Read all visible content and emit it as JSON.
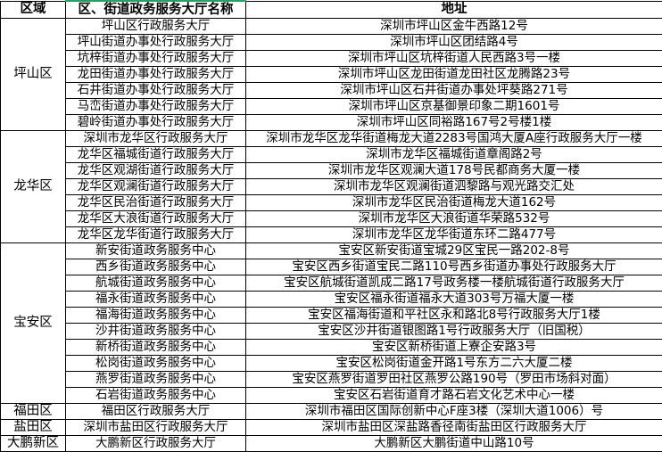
{
  "headers": {
    "region": "区域",
    "name": "区、街道政务服务大厅名称",
    "address": "地址"
  },
  "groups": [
    {
      "region": "坪山区",
      "rows": [
        [
          "坪山区行政服务大厅",
          "深圳市坪山区金牛西路12号"
        ],
        [
          "坪山街道办事处行政服务大厅",
          "深圳市坪山区团结路4号"
        ],
        [
          "坑梓街道办事处行政服务大厅",
          "深圳市坪山区坑梓街道人民西路3号一楼"
        ],
        [
          "龙田街道办事处行政服务大厅",
          "深圳市坪山区龙田街道龙田社区龙腾路23号"
        ],
        [
          "石井街道办事处行政服务大厅",
          "深圳市坪山区石井街道办事处坪葵路271号"
        ],
        [
          "马峦街道办事处行政服务大厅",
          "深圳市坪山区京基御景印象二期1601号"
        ],
        [
          "碧岭街道办事处行政服务大厅",
          "深圳市坪山区同裕路167号2号楼1楼"
        ]
      ]
    },
    {
      "region": "龙华区",
      "rows": [
        [
          "深圳市龙华区行政服务大厅",
          "深圳市龙华区龙华街道梅龙大道2283号国鸿大厦A座行政服务大厅一楼"
        ],
        [
          "龙华区福城街道行政服务大厅",
          "深圳市龙华区福城街道章阁路2号"
        ],
        [
          "龙华区观湖街道行政服务大厅",
          "深圳市龙华区观澜大道178号民都商务大厦一楼"
        ],
        [
          "龙华区观澜街道行政服务大厅",
          "深圳市龙华区观澜街道泗黎路与观光路交汇处"
        ],
        [
          "龙华区民治街道行政服务大厅",
          "深圳市龙华区民治街道梅龙大道162号"
        ],
        [
          "龙华区大浪街道行政服务大厅",
          "深圳市龙华区大浪街道华荣路532号"
        ],
        [
          "龙华区龙华街道行政服务大厅",
          "深圳市龙华区龙华街道东环二路477号"
        ]
      ]
    },
    {
      "region": "宝安区",
      "rows": [
        [
          "新安街道政务服务中心",
          "宝安区新安街道宝城29区宝民一路202-8号"
        ],
        [
          "西乡街道政务服务中心",
          "宝安区西乡街道宝民二路110号西乡街道办事处行政服务大厅"
        ],
        [
          "航城街道政务服务中心",
          "宝安区航城街道凯成二路17号政务楼一楼航城街道行政服务大厅"
        ],
        [
          "福永街道政务服务中心",
          "宝安区福永街道福永大道303号万福大厦一楼"
        ],
        [
          "福海街道政务服务中心",
          "宝安区福海街道和平社区永和路北8号行政服务大厅1楼"
        ],
        [
          "沙井街道政务服务中心",
          "宝安区沙井街道银图路1号行政服务大厅（旧国税）"
        ],
        [
          "新桥街道政务服务中心",
          "宝安区新桥街道上寮企安路3号"
        ],
        [
          "松岗街道政务服务中心",
          "宝安区松岗街道金开路1号东方二六大厦二楼"
        ],
        [
          "燕罗街道政务服务中心",
          "宝安区燕罗街道罗田社区燕罗公路190号（罗田市场斜对面）"
        ],
        [
          "石岩街道政务服务中心",
          "宝安区石岩街道育才路石岩文化艺术中心一楼"
        ]
      ]
    },
    {
      "region": "福田区",
      "rows": [
        [
          "福田区行政服务大厅",
          "深圳市福田区国际创新中心F座3楼（深圳大道1006）号"
        ]
      ]
    },
    {
      "region": "盐田区",
      "rows": [
        [
          "深圳市盐田区行政服务大厅",
          "深圳市盐田区深盐路香径南街盐田区行政服务大厅"
        ]
      ]
    },
    {
      "region": "大鹏新区",
      "rows": [
        [
          "大鹏新区行政服务大厅",
          "大鹏新区大鹏街道中山路10号"
        ]
      ]
    }
  ],
  "colors": {
    "grid": "#000000",
    "selection": "#21a366"
  }
}
